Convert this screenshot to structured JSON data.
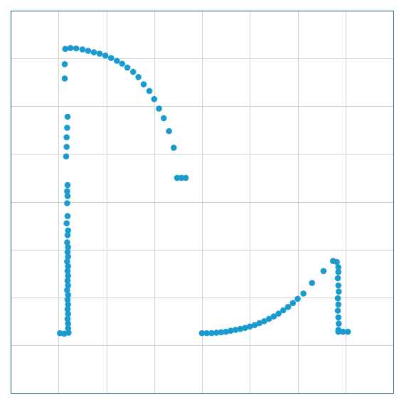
{
  "colors": {
    "background": "#ffffff",
    "frame": "#1f5f7a",
    "grid": "#d3d3d3",
    "point": "#1a9bd0"
  },
  "chart_data": {
    "type": "scatter",
    "title": "",
    "xlabel": "",
    "ylabel": "",
    "xlim": [
      0,
      8
    ],
    "ylim": [
      0,
      8
    ],
    "x_gridlines": [
      1,
      2,
      3,
      4,
      5,
      6,
      7
    ],
    "y_gridlines": [
      1,
      2,
      3,
      4,
      5,
      6,
      7
    ],
    "grid": true,
    "legend": "none",
    "series": [
      {
        "values": [
          [
            1.03,
            1.25
          ],
          [
            1.12,
            1.24
          ],
          [
            1.21,
            1.26
          ],
          [
            1.2,
            1.35
          ],
          [
            1.2,
            1.45
          ],
          [
            1.19,
            1.55
          ],
          [
            1.2,
            1.65
          ],
          [
            1.19,
            1.75
          ],
          [
            1.2,
            1.85
          ],
          [
            1.19,
            1.95
          ],
          [
            1.2,
            2.05
          ],
          [
            1.18,
            2.15
          ],
          [
            1.2,
            2.25
          ],
          [
            1.19,
            2.35
          ],
          [
            1.2,
            2.45
          ],
          [
            1.19,
            2.55
          ],
          [
            1.2,
            2.65
          ],
          [
            1.18,
            2.75
          ],
          [
            1.2,
            2.85
          ],
          [
            1.19,
            2.95
          ],
          [
            1.2,
            3.05
          ],
          [
            1.18,
            3.15
          ],
          [
            1.19,
            3.3
          ],
          [
            1.2,
            3.4
          ],
          [
            1.17,
            3.55
          ],
          [
            1.19,
            3.7
          ],
          [
            1.18,
            3.97
          ],
          [
            1.19,
            4.12
          ],
          [
            1.18,
            4.22
          ],
          [
            1.19,
            4.35
          ],
          [
            1.16,
            4.95
          ],
          [
            1.17,
            5.15
          ],
          [
            1.17,
            5.35
          ],
          [
            1.18,
            5.55
          ],
          [
            1.19,
            5.78
          ],
          [
            1.13,
            6.58
          ],
          [
            1.13,
            6.88
          ],
          [
            1.14,
            7.2
          ],
          [
            1.25,
            7.22
          ],
          [
            1.37,
            7.21
          ],
          [
            1.5,
            7.19
          ],
          [
            1.62,
            7.16
          ],
          [
            1.74,
            7.13
          ],
          [
            1.86,
            7.1
          ],
          [
            1.98,
            7.06
          ],
          [
            2.1,
            7.01
          ],
          [
            2.22,
            6.95
          ],
          [
            2.33,
            6.89
          ],
          [
            2.44,
            6.81
          ],
          [
            2.56,
            6.72
          ],
          [
            2.67,
            6.61
          ],
          [
            2.78,
            6.46
          ],
          [
            2.9,
            6.32
          ],
          [
            3.0,
            6.15
          ],
          [
            3.1,
            5.95
          ],
          [
            3.2,
            5.75
          ],
          [
            3.31,
            5.48
          ],
          [
            3.41,
            5.13
          ],
          [
            3.48,
            4.5
          ],
          [
            3.57,
            4.5
          ],
          [
            3.66,
            4.5
          ],
          [
            4.0,
            1.25
          ],
          [
            4.1,
            1.25
          ],
          [
            4.2,
            1.25
          ],
          [
            4.3,
            1.26
          ],
          [
            4.4,
            1.27
          ],
          [
            4.5,
            1.28
          ],
          [
            4.6,
            1.3
          ],
          [
            4.7,
            1.32
          ],
          [
            4.8,
            1.34
          ],
          [
            4.9,
            1.36
          ],
          [
            5.0,
            1.39
          ],
          [
            5.1,
            1.42
          ],
          [
            5.2,
            1.46
          ],
          [
            5.3,
            1.5
          ],
          [
            5.4,
            1.55
          ],
          [
            5.5,
            1.6
          ],
          [
            5.6,
            1.66
          ],
          [
            5.7,
            1.73
          ],
          [
            5.8,
            1.8
          ],
          [
            5.9,
            1.88
          ],
          [
            6.0,
            1.97
          ],
          [
            6.12,
            2.08
          ],
          [
            6.3,
            2.3
          ],
          [
            6.54,
            2.55
          ],
          [
            6.74,
            2.76
          ],
          [
            6.82,
            2.74
          ],
          [
            6.85,
            2.63
          ],
          [
            6.85,
            2.53
          ],
          [
            6.84,
            2.4
          ],
          [
            6.85,
            2.25
          ],
          [
            6.86,
            2.12
          ],
          [
            6.84,
            1.98
          ],
          [
            6.85,
            1.85
          ],
          [
            6.84,
            1.72
          ],
          [
            6.85,
            1.58
          ],
          [
            6.86,
            1.45
          ],
          [
            6.85,
            1.32
          ],
          [
            6.85,
            1.28
          ],
          [
            6.95,
            1.28
          ],
          [
            7.05,
            1.28
          ]
        ]
      }
    ]
  }
}
